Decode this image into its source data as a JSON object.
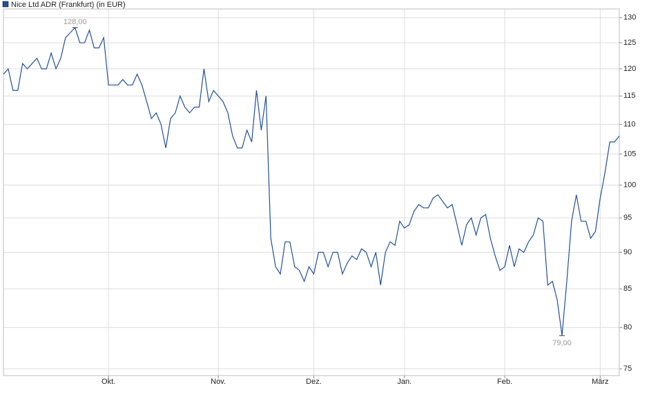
{
  "chart_data": {
    "type": "line",
    "categories": [
      null,
      null,
      null,
      null,
      null,
      null,
      null,
      null,
      null,
      null,
      null,
      null,
      null,
      null,
      null,
      null,
      null,
      null,
      null,
      null,
      null,
      null,
      "Okt.",
      null,
      null,
      null,
      null,
      null,
      null,
      null,
      null,
      null,
      null,
      null,
      null,
      null,
      null,
      null,
      null,
      null,
      null,
      null,
      null,
      null,
      null,
      "Nov.",
      null,
      null,
      null,
      null,
      null,
      null,
      null,
      null,
      null,
      null,
      null,
      null,
      null,
      null,
      null,
      null,
      null,
      null,
      null,
      "Dez.",
      null,
      null,
      null,
      null,
      null,
      null,
      null,
      null,
      null,
      null,
      null,
      null,
      null,
      null,
      null,
      null,
      null,
      null,
      "Jan.",
      null,
      null,
      null,
      null,
      null,
      null,
      null,
      null,
      null,
      null,
      null,
      null,
      null,
      null,
      null,
      null,
      null,
      null,
      null,
      null,
      "Feb.",
      null,
      null,
      null,
      null,
      null,
      null,
      null,
      null,
      null,
      null,
      null,
      null,
      null,
      null,
      null,
      null,
      null,
      null,
      null,
      "März",
      null,
      null,
      null,
      null
    ],
    "series": [
      {
        "name": "Nice Ltd ADR (Frankfurt) (in EUR)",
        "color": "#1f4e9c",
        "values": [
          119,
          120,
          116,
          116,
          121,
          120,
          121,
          122,
          120,
          120,
          123,
          120,
          122,
          126,
          127,
          128,
          125,
          125,
          127.5,
          124,
          124,
          126,
          117,
          117,
          117,
          118,
          117,
          117,
          119,
          117,
          114,
          111,
          112,
          110,
          106,
          111,
          112,
          115,
          113,
          112,
          113,
          113,
          120,
          114,
          116,
          115,
          114,
          112,
          108,
          106,
          106,
          109,
          107,
          116,
          109,
          115,
          92,
          88,
          87,
          91.5,
          91.5,
          88,
          87.5,
          86,
          88,
          87,
          90,
          90,
          88,
          90,
          90,
          87,
          88.5,
          89.5,
          89,
          90.5,
          90,
          88,
          90,
          85.5,
          90,
          91.5,
          91,
          94.5,
          93.5,
          94,
          96,
          97,
          96.5,
          96.5,
          98,
          98.5,
          97.5,
          96.5,
          97,
          94,
          91,
          94,
          95,
          92.5,
          95,
          95.5,
          92,
          89.5,
          87.5,
          88,
          91,
          88,
          90.5,
          90,
          91.5,
          92.5,
          95,
          94.5,
          85.5,
          86,
          83.5,
          79,
          86,
          94.5,
          98.5,
          94.5,
          94.5,
          92,
          93,
          98,
          102,
          107,
          107,
          108
        ],
        "value_labels": [
          null,
          null,
          null,
          null,
          null,
          null,
          null,
          null,
          null,
          null,
          null,
          null,
          null,
          null,
          null,
          "128,00",
          null,
          null,
          null,
          null,
          null,
          null,
          null,
          null,
          null,
          null,
          null,
          null,
          null,
          null,
          null,
          null,
          null,
          null,
          null,
          null,
          null,
          null,
          null,
          null,
          null,
          null,
          null,
          null,
          null,
          null,
          null,
          null,
          null,
          null,
          null,
          null,
          null,
          null,
          null,
          null,
          null,
          null,
          null,
          null,
          null,
          null,
          null,
          null,
          null,
          null,
          null,
          null,
          null,
          null,
          null,
          null,
          null,
          null,
          null,
          null,
          null,
          null,
          null,
          null,
          null,
          null,
          null,
          null,
          null,
          null,
          null,
          null,
          null,
          null,
          null,
          null,
          null,
          null,
          null,
          null,
          null,
          null,
          null,
          null,
          null,
          null,
          null,
          null,
          null,
          null,
          null,
          null,
          null,
          null,
          null,
          null,
          null,
          null,
          null,
          null,
          null,
          "79,00",
          null,
          null,
          null,
          null,
          null,
          null,
          null,
          null,
          null,
          null,
          null,
          null
        ]
      }
    ],
    "ylim": [
      74.2,
      131.8
    ],
    "yticks": [
      75,
      80,
      85,
      90,
      95,
      100,
      105,
      110,
      115,
      120,
      125,
      130
    ],
    "log_scale": true,
    "grid": true,
    "legend": "top-left"
  }
}
